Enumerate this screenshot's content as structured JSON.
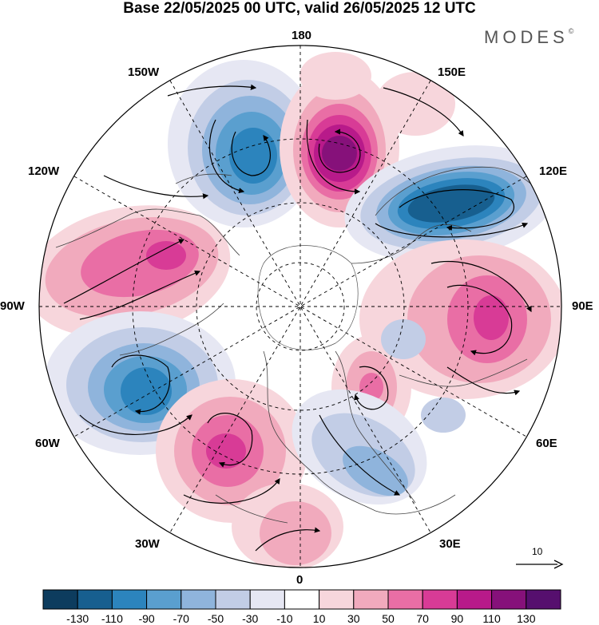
{
  "title": "Base 22/05/2025 00 UTC, valid 26/05/2025 12 UTC",
  "brand": "MODES",
  "brand_mark": "©",
  "longitude_labels": {
    "top": "180",
    "bottom": "0",
    "left": "90W",
    "right": "90E",
    "upper_left_1": "150W",
    "upper_left_2": "120W",
    "upper_right_1": "150E",
    "upper_right_2": "120E",
    "lower_left_1": "60W",
    "lower_left_2": "30W",
    "lower_right_1": "60E",
    "lower_right_2": "30E"
  },
  "reference_vector": {
    "label": "10"
  },
  "colorbar": {
    "tick_labels": [
      "-130",
      "-110",
      "-90",
      "-70",
      "-50",
      "-30",
      "-10",
      "10",
      "30",
      "50",
      "70",
      "90",
      "110",
      "130"
    ],
    "colors": [
      "#0d3c5e",
      "#175f8f",
      "#2c84bd",
      "#5a9fcf",
      "#8fb4dc",
      "#c2cde6",
      "#e6e7f3",
      "#ffffff",
      "#f7d6dc",
      "#f1aabd",
      "#e96ea5",
      "#d83b96",
      "#b81a8a",
      "#86117a",
      "#560f6e"
    ]
  },
  "anomaly_centers": [
    {
      "id": "neg-150w",
      "sign": "negative",
      "peak_class": "-90"
    },
    {
      "id": "pos-165e",
      "sign": "positive",
      "peak_class": "110"
    },
    {
      "id": "neg-120e",
      "sign": "negative",
      "peak_class": "-110"
    },
    {
      "id": "pos-110w",
      "sign": "positive",
      "peak_class": "70"
    },
    {
      "id": "pos-80e",
      "sign": "positive",
      "peak_class": "70"
    },
    {
      "id": "neg-65w",
      "sign": "negative",
      "peak_class": "-90"
    },
    {
      "id": "pos-40w",
      "sign": "positive",
      "peak_class": "70"
    },
    {
      "id": "pos-45e",
      "sign": "positive",
      "peak_class": "50"
    },
    {
      "id": "neg-20e",
      "sign": "negative",
      "peak_class": "-50"
    }
  ]
}
